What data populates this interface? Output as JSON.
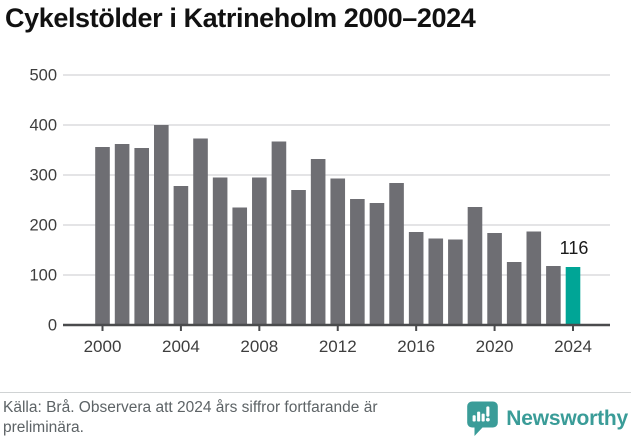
{
  "title": "Cykelstölder i Katrineholm 2000–2024",
  "chart_data": {
    "type": "bar",
    "title": "Cykelstölder i Katrineholm 2000–2024",
    "categories": [
      "2000",
      "2001",
      "2002",
      "2003",
      "2004",
      "2005",
      "2006",
      "2007",
      "2008",
      "2009",
      "2010",
      "2011",
      "2012",
      "2013",
      "2014",
      "2015",
      "2016",
      "2017",
      "2018",
      "2019",
      "2020",
      "2021",
      "2022",
      "2023",
      "2024"
    ],
    "values": [
      356,
      362,
      354,
      400,
      278,
      373,
      295,
      235,
      295,
      367,
      270,
      332,
      293,
      252,
      244,
      284,
      186,
      173,
      171,
      236,
      184,
      126,
      187,
      118,
      116
    ],
    "highlight_index": 24,
    "highlight_label": "116",
    "x_tick_labels": [
      "2000",
      "2004",
      "2008",
      "2012",
      "2016",
      "2020",
      "2024"
    ],
    "y_ticks": [
      0,
      100,
      200,
      300,
      400,
      500
    ],
    "ylim": [
      0,
      500
    ],
    "xlabel": "",
    "ylabel": "",
    "grid": true,
    "legend": "none",
    "bar_color": "#6e6e73",
    "highlight_color": "#00a596",
    "grid_color": "#e4e4e6",
    "axis_color": "#4a4b4d",
    "axis_text_color": "#3e3e3e",
    "annotation_color": "#1a1a1a"
  },
  "footer": {
    "source_lines": [
      "Källa: Brå. Observera att 2024 års siffror fortfarande är",
      "preliminära."
    ],
    "brand": {
      "name": "Newsworthy",
      "icon": "newsworthy-logo-icon",
      "color": "#3a9c98"
    }
  }
}
